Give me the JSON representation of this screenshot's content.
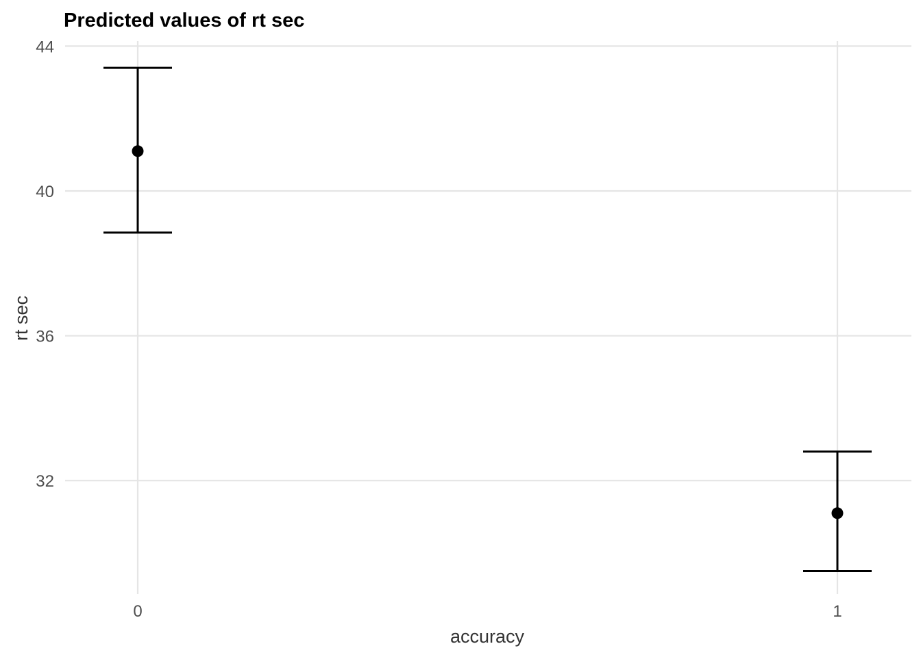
{
  "chart_data": {
    "type": "scatter",
    "title": "Predicted values of rt sec",
    "xlabel": "accuracy",
    "ylabel": "rt sec",
    "categories": [
      "0",
      "1"
    ],
    "points": [
      {
        "x": "0",
        "y": 41.1,
        "ci_low": 38.85,
        "ci_high": 43.4
      },
      {
        "x": "1",
        "y": 31.1,
        "ci_low": 29.5,
        "ci_high": 32.8
      }
    ],
    "yticks": [
      32,
      36,
      40,
      44
    ],
    "ylim": [
      29.5,
      44
    ],
    "grid": true,
    "legend": "none",
    "colors": {
      "marks": "#000000",
      "grid": "#e5e5e5",
      "text": "#4d4d4d"
    }
  }
}
